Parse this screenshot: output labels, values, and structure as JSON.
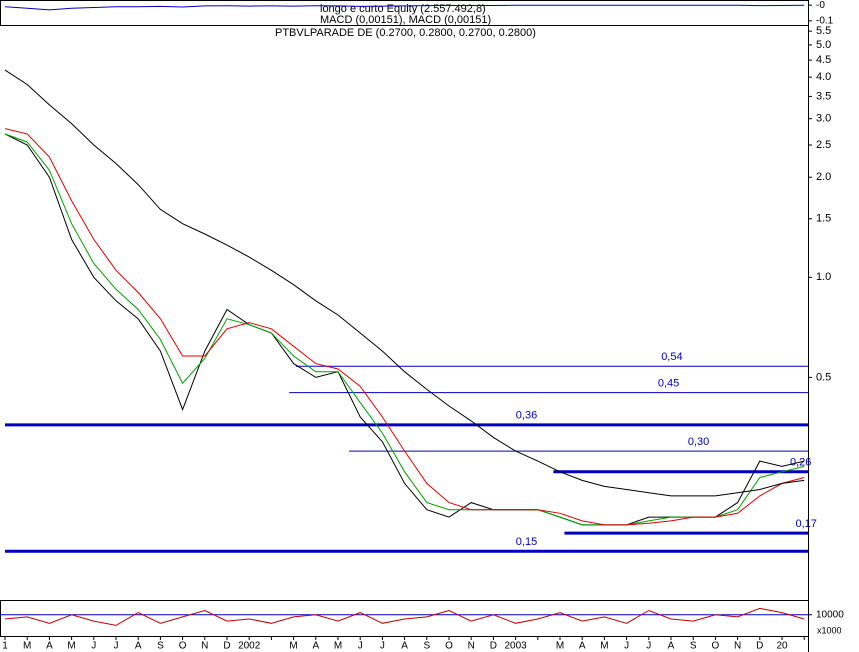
{
  "chart_data": [
    {
      "type": "line",
      "panel": "top",
      "legend_texts": [
        "longo e curto Equity (2.557.492,8)",
        "MACD (0,00151), MACD (0,00151)"
      ],
      "ylim": [
        -0.12,
        0.02
      ],
      "yticks": [
        {
          "value": -0.1,
          "label": "-0.1"
        },
        {
          "value": 0,
          "label": "-0"
        }
      ],
      "series": [
        {
          "color": "#0000c0",
          "values": [
            -0.01,
            -0.02,
            -0.03,
            -0.02,
            -0.015,
            -0.01,
            -0.01,
            -0.008,
            -0.012,
            -0.005,
            -0.004,
            -0.006,
            -0.005,
            -0.006,
            -0.004,
            -0.005,
            -0.008,
            -0.006,
            -0.005,
            -0.003,
            -0.002,
            -0.002,
            -0.002,
            -0.001,
            -0.001,
            -0.001,
            -0.001,
            -0.001,
            -0.001,
            -0.001,
            -0.001,
            -0.001,
            -0.001,
            -0.001,
            -0.003,
            -0.002,
            -0.001
          ]
        }
      ]
    },
    {
      "type": "line",
      "panel": "main",
      "log_scale": true,
      "title": "PTBVLPARADE DE (0.2700, 0.2800, 0.2700, 0.2800)",
      "categories": [
        "1",
        "M",
        "A",
        "M",
        "J",
        "J",
        "A",
        "S",
        "O",
        "N",
        "D",
        "2002",
        null,
        "M",
        "A",
        "M",
        "J",
        "J",
        "A",
        "S",
        "O",
        "N",
        "D",
        "2003",
        null,
        "M",
        "A",
        "M",
        "J",
        "J",
        "A",
        "S",
        "O",
        "N",
        "D",
        "20",
        null
      ],
      "ylim": [
        0.107,
        5.7
      ],
      "yticks": [
        {
          "value": 5.5,
          "label": "5.5"
        },
        {
          "value": 5,
          "label": "5.0"
        },
        {
          "value": 4.5,
          "label": "4.5"
        },
        {
          "value": 4,
          "label": "4.0"
        },
        {
          "value": 3.5,
          "label": "3.5"
        },
        {
          "value": 3,
          "label": "3.0"
        },
        {
          "value": 2.5,
          "label": "2.5"
        },
        {
          "value": 2,
          "label": "2.0"
        },
        {
          "value": 1.5,
          "label": "1.5"
        },
        {
          "value": 1,
          "label": "1.0"
        },
        {
          "value": 0.5,
          "label": "0.5"
        }
      ],
      "series": [
        {
          "color": "#000000",
          "values": [
            2.7,
            2.5,
            2.0,
            1.3,
            1.0,
            0.85,
            0.75,
            0.6,
            0.4,
            0.6,
            0.8,
            0.72,
            0.68,
            0.55,
            0.5,
            0.52,
            0.38,
            0.32,
            0.24,
            0.2,
            0.19,
            0.21,
            0.2,
            0.2,
            0.2,
            0.19,
            0.18,
            0.18,
            0.18,
            0.19,
            0.19,
            0.19,
            0.19,
            0.21,
            0.28,
            0.27,
            0.28
          ]
        },
        {
          "color": "#00a000",
          "values": [
            2.7,
            2.55,
            2.1,
            1.45,
            1.1,
            0.92,
            0.8,
            0.65,
            0.48,
            0.57,
            0.75,
            0.72,
            0.68,
            0.58,
            0.52,
            0.52,
            0.42,
            0.34,
            0.26,
            0.21,
            0.2,
            0.2,
            0.2,
            0.2,
            0.2,
            0.19,
            0.18,
            0.18,
            0.18,
            0.185,
            0.19,
            0.19,
            0.19,
            0.2,
            0.25,
            0.26,
            0.27
          ]
        },
        {
          "color": "#e00000",
          "values": [
            2.8,
            2.7,
            2.3,
            1.7,
            1.3,
            1.05,
            0.9,
            0.75,
            0.58,
            0.58,
            0.7,
            0.73,
            0.7,
            0.62,
            0.55,
            0.53,
            0.47,
            0.38,
            0.3,
            0.24,
            0.21,
            0.2,
            0.2,
            0.2,
            0.2,
            0.195,
            0.185,
            0.18,
            0.18,
            0.182,
            0.185,
            0.19,
            0.19,
            0.195,
            0.22,
            0.24,
            0.25
          ]
        },
        {
          "color": "#000000",
          "values": [
            4.2,
            3.8,
            3.3,
            2.9,
            2.5,
            2.2,
            1.9,
            1.6,
            1.45,
            1.35,
            1.25,
            1.15,
            1.05,
            0.95,
            0.85,
            0.77,
            0.68,
            0.6,
            0.52,
            0.46,
            0.41,
            0.37,
            0.33,
            0.3,
            0.28,
            0.26,
            0.245,
            0.235,
            0.23,
            0.225,
            0.22,
            0.22,
            0.22,
            0.225,
            0.23,
            0.24,
            0.245
          ]
        }
      ],
      "levels": [
        {
          "value": 0.54,
          "label": "0,54",
          "x_start": 13.1,
          "thick": false
        },
        {
          "value": 0.45,
          "label": "0,45",
          "x_start": 12.8,
          "thick": false
        },
        {
          "value": 0.36,
          "label": "0,36",
          "x_start": 0,
          "thick": true
        },
        {
          "value": 0.3,
          "label": "0,30",
          "x_start": 15.5,
          "thick": false
        },
        {
          "value": 0.26,
          "label": "0,26",
          "x_start": 24.7,
          "thick": true
        },
        {
          "value": 0.17,
          "label": "0,17",
          "x_start": 25.2,
          "thick": true
        },
        {
          "value": 0.15,
          "label": "0,15",
          "x_start": 0,
          "thick": true
        }
      ],
      "level_color": "#0000c0"
    },
    {
      "type": "line",
      "panel": "bottom",
      "unit_label": "x1000",
      "ylim": [
        0,
        16000
      ],
      "yticks": [
        10000
      ],
      "series": [
        {
          "color": "#c00000",
          "values": [
            8000,
            9000,
            6000,
            10000,
            7000,
            5000,
            11000,
            6000,
            9000,
            12000,
            7000,
            8000,
            6000,
            9000,
            10000,
            7000,
            11000,
            6000,
            8000,
            9000,
            12000,
            7000,
            10000,
            6000,
            8000,
            11000,
            7000,
            9000,
            6000,
            12000,
            8000,
            7000,
            10000,
            9000,
            13000,
            11000,
            8000
          ]
        }
      ]
    }
  ]
}
